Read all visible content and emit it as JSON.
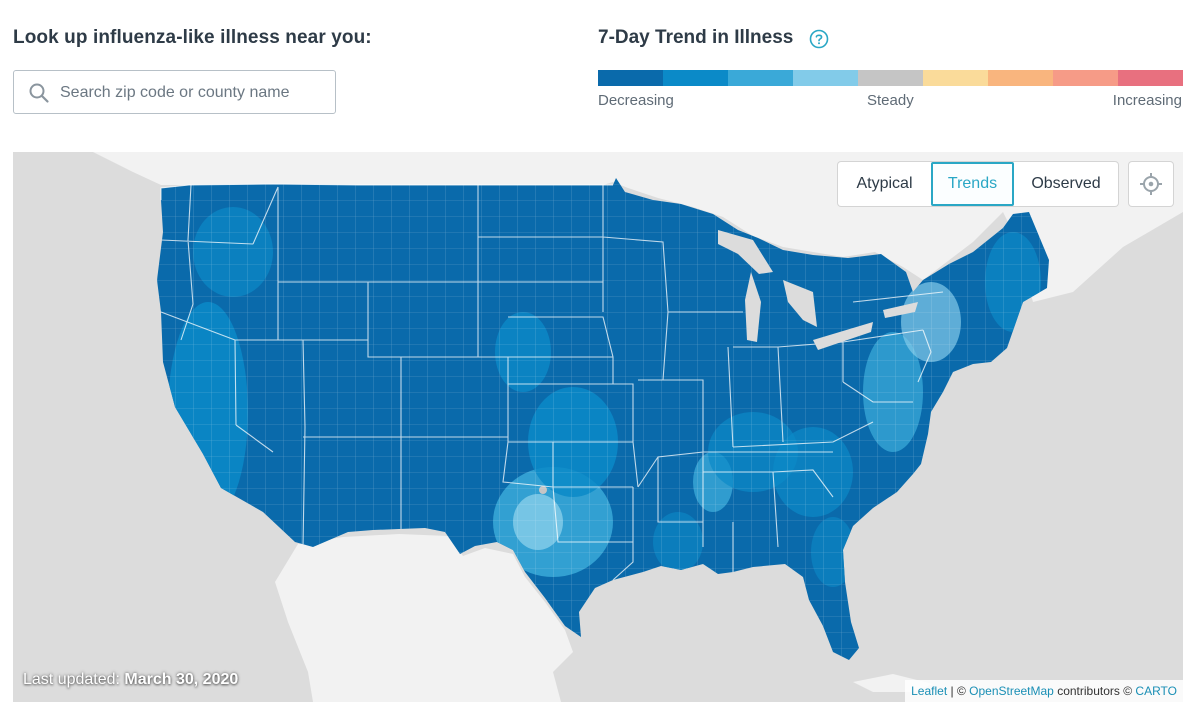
{
  "lookup": {
    "title": "Look up influenza-like illness near you:",
    "placeholder": "Search zip code or county name",
    "value": ""
  },
  "trend": {
    "title": "7-Day Trend in Illness",
    "legend_colors": [
      "#0a6aab",
      "#0b8ac8",
      "#3aa9d8",
      "#82cbe9",
      "#c5c5c5",
      "#fadb9a",
      "#f9b57e",
      "#f69b87",
      "#e8707f"
    ],
    "label_decreasing": "Decreasing",
    "label_steady": "Steady",
    "label_increasing": "Increasing"
  },
  "map": {
    "views": [
      "Atypical",
      "Trends",
      "Observed"
    ],
    "active_view": "Trends",
    "last_updated_label": "Last updated:",
    "last_updated_date": "March 30, 2020",
    "attribution": {
      "leaflet": "Leaflet",
      "sep": "| ©",
      "osm": "OpenStreetMap",
      "contributors": "contributors ©",
      "carto": "CARTO"
    },
    "colors": {
      "land": "#f2f2f2",
      "water": "#dcdcdc",
      "decreasing_strong": "#0a6aab",
      "decreasing": "#0b8ac8",
      "decreasing_mild": "#3aa9d8",
      "decreasing_slight": "#82cbe9",
      "steady": "#c5c5c5"
    }
  }
}
